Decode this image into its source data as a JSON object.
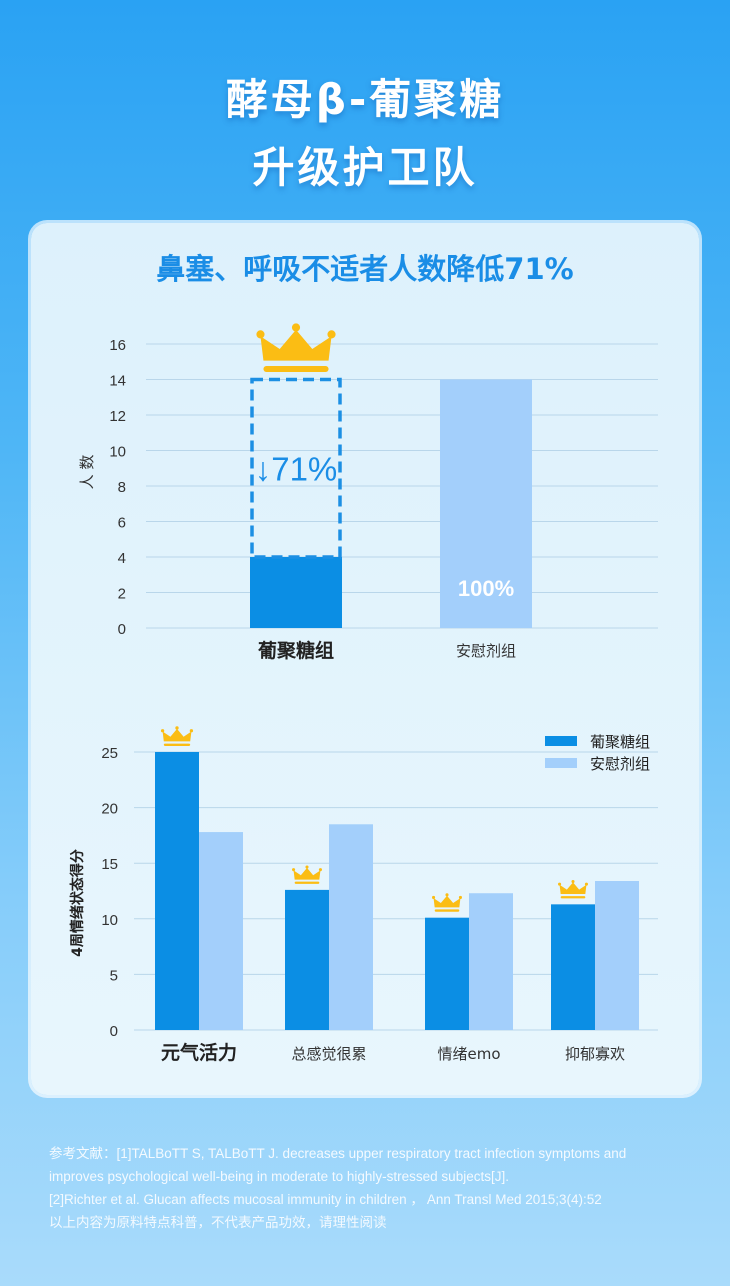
{
  "header": {
    "title_line1": "酵母β-葡聚糖",
    "title_line2": "升级护卫队"
  },
  "card": {
    "subtitle": "鼻塞、呼吸不适者人数降低71%"
  },
  "colors": {
    "primary": "#0b8ee4",
    "secondary": "#a3cffb",
    "crown": "#fbbd14",
    "accent_text": "#1a8de6",
    "axis_text": "#333333",
    "grid": "#b9d6ea"
  },
  "icons": [
    "crown-icon",
    "down-arrow-icon"
  ],
  "chart_data": [
    {
      "type": "bar",
      "ylabel": "人 数",
      "ylim": [
        0,
        16
      ],
      "yticks": [
        0,
        2,
        4,
        6,
        8,
        10,
        12,
        14,
        16
      ],
      "categories": [
        "葡聚糖组",
        "安慰剂组"
      ],
      "values": [
        4,
        14
      ],
      "reference_level": 14,
      "annotations": {
        "reduction_label": "↓71%",
        "placebo_label": "100%"
      },
      "highlight": "葡聚糖组",
      "grid": true
    },
    {
      "type": "bar",
      "ylabel": "4周情绪状态得分",
      "ylim": [
        0,
        27
      ],
      "yticks": [
        0,
        5,
        10,
        15,
        20,
        25
      ],
      "categories": [
        "元气活力",
        "总感觉很累",
        "情绪emo",
        "抑郁寡欢"
      ],
      "series": [
        {
          "name": "葡聚糖组",
          "values": [
            25,
            12.6,
            10.1,
            11.3
          ]
        },
        {
          "name": "安慰剂组",
          "values": [
            17.8,
            18.5,
            12.3,
            13.4
          ]
        }
      ],
      "legend": "top-right",
      "crowned_series": "葡聚糖组",
      "grid": true
    }
  ],
  "references": {
    "lines": [
      "参考文献：[1]TALBoTT S, TALBoTT J. decreases upper respiratory tract infection symptoms and",
      "improves psychological well-being in moderate to highly-stressed subjects[J].",
      "[2]Richter et al. Glucan affects mucosal immunity in children ， Ann Transl Med 2015;3(4):52",
      "以上内容为原料特点科普，不代表产品功效，请理性阅读"
    ]
  }
}
